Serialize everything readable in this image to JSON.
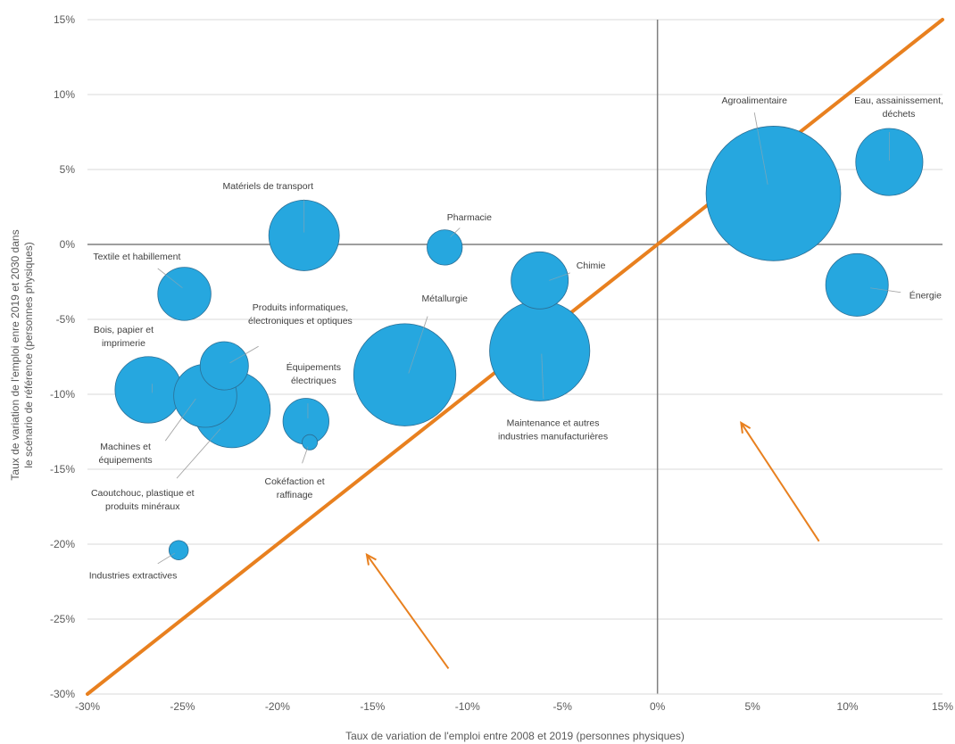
{
  "chart_data": {
    "type": "bubble",
    "title": "",
    "xlabel": "Taux de variation de l'emploi entre 2008 et 2019 (personnes physiques)",
    "ylabel": [
      "Taux de variation de l'emploi enre 2019 et 2030 dans",
      "le scénario de référence (personnes physiques)"
    ],
    "xlim": [
      -30,
      15
    ],
    "ylim": [
      -30,
      15
    ],
    "x_ticks": [
      -30,
      -25,
      -20,
      -15,
      -10,
      -5,
      0,
      5,
      10,
      15
    ],
    "y_ticks": [
      -30,
      -25,
      -20,
      -15,
      -10,
      -5,
      0,
      5,
      10,
      15
    ],
    "x_tick_labels": [
      "-30%",
      "-25%",
      "-20%",
      "-15%",
      "-10%",
      "-5%",
      "0%",
      "5%",
      "10%",
      "15%"
    ],
    "y_tick_labels": [
      "-30%",
      "-25%",
      "-20%",
      "-15%",
      "-10%",
      "-5%",
      "0%",
      "5%",
      "10%",
      "15%"
    ],
    "grid": "horizontal",
    "bubble_color": "#26A7DF",
    "reference_line": {
      "from": [
        -30,
        -30
      ],
      "to": [
        15,
        15
      ],
      "color": "#E8801F"
    },
    "arrows": [
      {
        "from": [
          -11,
          -28.3
        ],
        "to": [
          -15.3,
          -20.7
        ],
        "color": "#E8801F"
      },
      {
        "from": [
          8.5,
          -19.8
        ],
        "to": [
          4.4,
          -11.9
        ],
        "color": "#E8801F"
      }
    ],
    "series": [
      {
        "label": [
          "Agroalimentaire"
        ],
        "x": 6.1,
        "y": 3.4,
        "size": 5830
      },
      {
        "label": [
          "Eau, assainissement,",
          "déchets"
        ],
        "x": 12.2,
        "y": 5.5,
        "size": 1450
      },
      {
        "label": [
          "Énergie"
        ],
        "x": 10.5,
        "y": -2.7,
        "size": 1260
      },
      {
        "label": [
          "Matériels de transport"
        ],
        "x": -18.6,
        "y": 0.6,
        "size": 1600
      },
      {
        "label": [
          "Pharmacie"
        ],
        "x": -11.2,
        "y": -0.2,
        "size": 400
      },
      {
        "label": [
          "Textile et habillement"
        ],
        "x": -24.9,
        "y": -3.3,
        "size": 910
      },
      {
        "label": [
          "Chimie"
        ],
        "x": -6.2,
        "y": -2.4,
        "size": 1050
      },
      {
        "label": [
          "Produits informatiques,",
          "électroniques et optiques"
        ],
        "x": -22.8,
        "y": -8.1,
        "size": 750
      },
      {
        "label": [
          "Bois, papier et",
          "imprimerie"
        ],
        "x": -26.8,
        "y": -9.7,
        "size": 1420
      },
      {
        "label": [
          "Métallurgie"
        ],
        "x": -13.3,
        "y": -8.7,
        "size": 3360
      },
      {
        "label": [
          "Équipements",
          "électriques"
        ],
        "x": -18.5,
        "y": -11.8,
        "size": 680
      },
      {
        "label": [
          "Maintenance et autres",
          "industries manufacturières"
        ],
        "x": -6.2,
        "y": -7.1,
        "size": 3230
      },
      {
        "label": [
          "Machines et",
          "équipements"
        ],
        "x": -23.8,
        "y": -10.1,
        "size": 1280
      },
      {
        "label": [
          "Caoutchouc, plastique et",
          "produits minéraux"
        ],
        "x": -22.4,
        "y": -11.0,
        "size": 1900
      },
      {
        "label": [
          "Cokéfaction et",
          "raffinage"
        ],
        "x": -18.3,
        "y": -13.2,
        "size": 75
      },
      {
        "label": [
          "Industries extractives"
        ],
        "x": -25.2,
        "y": -20.4,
        "size": 120
      }
    ],
    "label_positions": [
      {
        "lx": 5.1,
        "ly": 9.4,
        "anchor": "middle",
        "leader": [
          5.1,
          8.8,
          5.8,
          4.0
        ]
      },
      {
        "lx": 12.7,
        "ly": 9.4,
        "anchor": "middle",
        "leader": [
          12.2,
          7.5,
          12.2,
          5.6
        ]
      },
      {
        "lx": 14.1,
        "ly": -3.6,
        "anchor": "middle",
        "leader": [
          12.8,
          -3.2,
          11.2,
          -2.9
        ]
      },
      {
        "lx": -20.5,
        "ly": 3.7,
        "anchor": "middle",
        "leader": [
          -18.6,
          3.0,
          -18.6,
          0.8
        ]
      },
      {
        "lx": -9.9,
        "ly": 1.6,
        "anchor": "middle",
        "leader": [
          -10.4,
          1.1,
          -10.9,
          0.5
        ]
      },
      {
        "lx": -27.4,
        "ly": -1.0,
        "anchor": "middle",
        "leader": [
          -26.3,
          -1.6,
          -25.0,
          -2.9
        ]
      },
      {
        "lx": -3.5,
        "ly": -1.6,
        "anchor": "middle",
        "leader": [
          -4.6,
          -1.9,
          -5.7,
          -2.4
        ]
      },
      {
        "lx": -18.8,
        "ly": -4.4,
        "anchor": "middle",
        "leader": [
          -21.0,
          -6.8,
          -22.5,
          -7.9
        ]
      },
      {
        "lx": -28.1,
        "ly": -5.9,
        "anchor": "middle",
        "leader": [
          -26.6,
          -9.3,
          -26.6,
          -9.9
        ]
      },
      {
        "lx": -11.2,
        "ly": -3.8,
        "anchor": "middle",
        "leader": [
          -12.1,
          -4.8,
          -13.1,
          -8.6
        ]
      },
      {
        "lx": -18.1,
        "ly": -8.4,
        "anchor": "middle",
        "leader": [
          -18.4,
          -10.6,
          -18.4,
          -11.6
        ]
      },
      {
        "lx": -5.5,
        "ly": -12.1,
        "anchor": "middle",
        "leader": [
          -6.0,
          -10.3,
          -6.1,
          -7.3
        ]
      },
      {
        "lx": -28.0,
        "ly": -13.7,
        "anchor": "middle",
        "leader": [
          -25.9,
          -13.1,
          -24.3,
          -10.3
        ]
      },
      {
        "lx": -27.1,
        "ly": -16.8,
        "anchor": "middle",
        "leader": [
          -25.3,
          -15.6,
          -23.0,
          -12.3
        ]
      },
      {
        "lx": -19.1,
        "ly": -16.0,
        "anchor": "middle",
        "leader": [
          -18.7,
          -14.6,
          -18.4,
          -13.5
        ]
      },
      {
        "lx": -27.6,
        "ly": -22.3,
        "anchor": "middle",
        "leader": [
          -26.3,
          -21.3,
          -25.4,
          -20.6
        ]
      }
    ]
  }
}
